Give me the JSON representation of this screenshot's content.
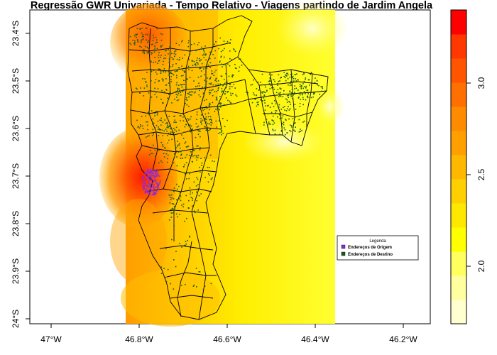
{
  "title": "Regressão GWR Univariada - Tempo Relativo - Viagens partindo de Jardim Angela",
  "x_ticks": [
    "47°W",
    "46.8°W",
    "46.6°W",
    "46.4°W",
    "46.2°W"
  ],
  "y_ticks": [
    "23.4°S",
    "23.5°S",
    "23.6°S",
    "23.7°S",
    "23.8°S",
    "23.9°S",
    "24°S"
  ],
  "legend": {
    "title": "Legenda",
    "items": [
      {
        "label": "Endereços de Origem",
        "color": "#8a2be2"
      },
      {
        "label": "Endereços de Destino",
        "color": "#1a5c1a"
      }
    ]
  },
  "colorbar": {
    "ticks": [
      "2.0",
      "2.5",
      "3.0"
    ],
    "colors": [
      "#ffffd0",
      "#ffffa0",
      "#ffff60",
      "#ffff00",
      "#ffe800",
      "#ffd000",
      "#ffb800",
      "#ffa000",
      "#ff8c00",
      "#ff7000",
      "#ff5500",
      "#ff3800",
      "#ff0000"
    ]
  },
  "chart_data": {
    "type": "heatmap",
    "title": "Regressão GWR Univariada - Tempo Relativo - Viagens partindo de Jardim Angela",
    "xlim": [
      -47.07,
      -46.13
    ],
    "ylim": [
      -24.02,
      -23.36
    ],
    "x_ticks": [
      -47.0,
      -46.8,
      -46.6,
      -46.4,
      -46.2
    ],
    "y_ticks": [
      -23.4,
      -23.5,
      -23.6,
      -23.7,
      -23.8,
      -23.9,
      -24.0
    ],
    "value_range": [
      1.7,
      3.4
    ],
    "colorbar_ticks": [
      2.0,
      2.5,
      3.0
    ],
    "legend_placement": "bottom-right",
    "grid": false
  }
}
